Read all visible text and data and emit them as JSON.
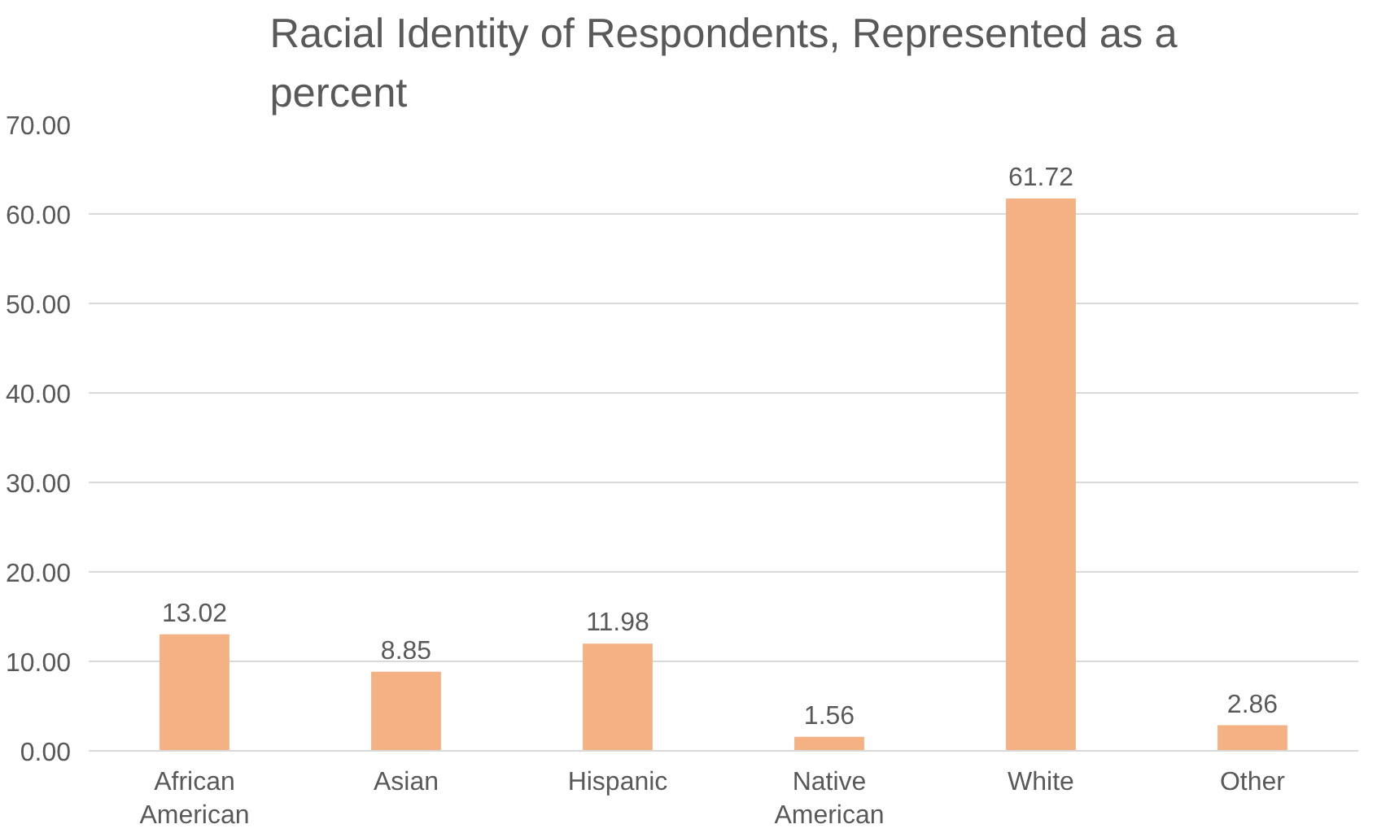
{
  "chart_data": {
    "type": "bar",
    "title": "Racial Identity of Respondents, Represented as a percent",
    "categories": [
      "African American",
      "Asian",
      "Hispanic",
      "Native American",
      "White",
      "Other"
    ],
    "values": [
      13.02,
      8.85,
      11.98,
      1.56,
      61.72,
      2.86
    ],
    "color": "#f4b183",
    "ylim": [
      0,
      70
    ],
    "yticks": [
      {
        "value": 0,
        "label": "0.00"
      },
      {
        "value": 10,
        "label": "10.00"
      },
      {
        "value": 20,
        "label": "20.00"
      },
      {
        "value": 30,
        "label": "30.00"
      },
      {
        "value": 40,
        "label": "40.00"
      },
      {
        "value": 50,
        "label": "50.00"
      },
      {
        "value": 60,
        "label": "60.00"
      },
      {
        "value": 70,
        "label": "70.00"
      }
    ],
    "grid": "y",
    "data_labels": true
  }
}
